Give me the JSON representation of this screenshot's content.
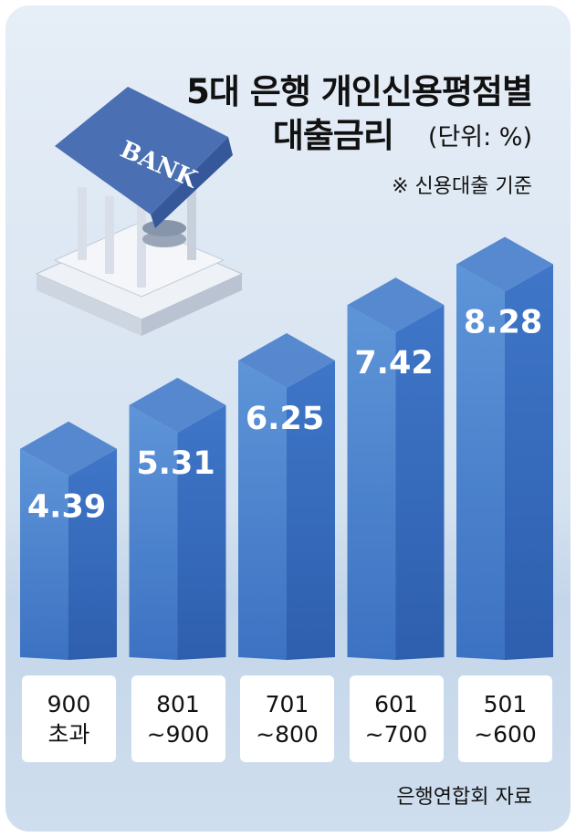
{
  "chart_data": {
    "type": "bar3d",
    "title": [
      "5대 은행 개인신용평점별",
      "대출금리"
    ],
    "unit": "(단위: %)",
    "note": "※ 신용대출 기준",
    "source": "은행연합회 자료",
    "icon_label": "BANK",
    "categories": [
      "900\n초과",
      "801\n~900",
      "701\n~800",
      "601\n~700",
      "501\n~600"
    ],
    "values": [
      4.39,
      5.31,
      6.25,
      7.42,
      8.28
    ],
    "color": "#3f78c9"
  }
}
